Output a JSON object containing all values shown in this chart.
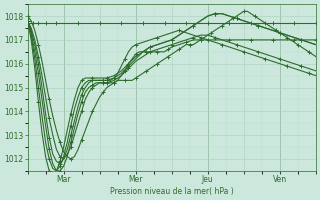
{
  "background_color": "#cce8dc",
  "grid_major_color": "#aacfbf",
  "grid_minor_color": "#bdddd0",
  "line_color": "#2d6b2d",
  "ylabel": "Pression niveau de la mer( hPa )",
  "ylim": [
    1011.5,
    1018.5
  ],
  "yticks": [
    1012,
    1013,
    1014,
    1015,
    1016,
    1017,
    1018
  ],
  "xtick_labels": [
    "",
    "Mar",
    "",
    "Mer",
    "",
    "Jeu",
    "",
    "Ven"
  ],
  "day_vlines": [
    1,
    3,
    5,
    7
  ],
  "xlim": [
    0,
    8
  ],
  "series": [
    {
      "x": [
        0,
        0.05,
        0.1,
        0.15,
        0.2,
        0.25,
        0.3,
        0.35,
        0.4,
        0.5,
        0.6,
        0.7,
        0.8,
        1.0,
        1.2,
        1.4,
        1.6,
        1.8,
        2.0,
        2.2,
        2.4,
        2.6,
        2.8,
        3.0,
        3.2,
        3.4,
        3.6,
        3.8,
        4.0,
        4.2,
        4.4,
        4.6,
        4.8,
        5.0,
        5.2,
        5.4,
        5.6,
        5.8,
        6.0,
        6.2,
        6.4,
        6.6,
        6.8,
        7.0,
        7.2,
        7.4,
        7.6,
        7.8,
        8.0
      ],
      "y": [
        1017.7,
        1017.7,
        1017.7,
        1017.7,
        1017.7,
        1017.7,
        1017.7,
        1017.7,
        1017.7,
        1017.7,
        1017.7,
        1017.7,
        1017.7,
        1017.7,
        1017.7,
        1017.7,
        1017.7,
        1017.7,
        1017.7,
        1017.7,
        1017.7,
        1017.7,
        1017.7,
        1017.7,
        1017.7,
        1017.7,
        1017.7,
        1017.7,
        1017.7,
        1017.7,
        1017.7,
        1017.7,
        1017.7,
        1017.7,
        1017.7,
        1017.7,
        1017.7,
        1017.7,
        1017.7,
        1017.7,
        1017.7,
        1017.7,
        1017.7,
        1017.7,
        1017.7,
        1017.7,
        1017.7,
        1017.7,
        1017.7
      ]
    },
    {
      "x": [
        0,
        0.1,
        0.2,
        0.3,
        0.4,
        0.5,
        0.6,
        0.7,
        0.8,
        0.9,
        1.0,
        1.1,
        1.2,
        1.3,
        1.4,
        1.5,
        1.6,
        1.7,
        1.8,
        1.9,
        2.0,
        2.1,
        2.2,
        2.3,
        2.4,
        2.5,
        2.6,
        2.7,
        2.8,
        2.9,
        3.0,
        3.1,
        3.2,
        3.3,
        3.4,
        3.5,
        3.6,
        3.7,
        3.8,
        3.9,
        4.0,
        4.2,
        4.4,
        4.6,
        4.8,
        5.0,
        5.2,
        5.4,
        5.6,
        5.8,
        6.0,
        6.2,
        6.4,
        6.6,
        6.8,
        7.0,
        7.2,
        7.4,
        7.6,
        7.8,
        8.0
      ],
      "y": [
        1017.8,
        1017.5,
        1017.0,
        1016.3,
        1015.5,
        1014.6,
        1013.7,
        1013.0,
        1012.4,
        1012.1,
        1012.0,
        1012.2,
        1012.5,
        1013.0,
        1013.5,
        1014.0,
        1014.5,
        1014.8,
        1015.0,
        1015.1,
        1015.2,
        1015.2,
        1015.2,
        1015.2,
        1015.2,
        1015.3,
        1015.5,
        1015.7,
        1016.0,
        1016.2,
        1016.4,
        1016.5,
        1016.5,
        1016.5,
        1016.5,
        1016.5,
        1016.5,
        1016.5,
        1016.5,
        1016.6,
        1016.7,
        1016.8,
        1016.9,
        1017.0,
        1017.0,
        1017.0,
        1017.0,
        1017.0,
        1017.0,
        1017.0,
        1017.0,
        1017.0,
        1017.0,
        1017.0,
        1017.0,
        1017.0,
        1017.0,
        1017.0,
        1017.0,
        1017.0,
        1017.0
      ]
    },
    {
      "x": [
        0,
        0.1,
        0.2,
        0.3,
        0.4,
        0.5,
        0.6,
        0.7,
        0.8,
        0.9,
        1.0,
        1.1,
        1.2,
        1.3,
        1.4,
        1.5,
        1.6,
        1.7,
        1.8,
        1.9,
        2.0,
        2.1,
        2.2,
        2.3,
        2.4,
        2.5,
        2.6,
        2.7,
        2.8,
        2.9,
        3.0,
        3.2,
        3.4,
        3.6,
        3.8,
        4.0,
        4.2,
        4.4,
        4.6,
        4.8,
        5.0,
        5.2,
        5.4,
        5.6,
        5.8,
        6.0,
        6.2,
        6.4,
        6.6,
        6.8,
        7.0,
        7.2,
        7.4,
        7.6,
        7.8,
        8.0
      ],
      "y": [
        1017.8,
        1017.4,
        1016.8,
        1016.0,
        1015.0,
        1013.9,
        1012.9,
        1012.2,
        1011.9,
        1011.8,
        1012.0,
        1012.4,
        1013.0,
        1013.6,
        1014.2,
        1014.7,
        1015.0,
        1015.2,
        1015.3,
        1015.3,
        1015.3,
        1015.3,
        1015.3,
        1015.3,
        1015.4,
        1015.6,
        1015.9,
        1016.2,
        1016.5,
        1016.7,
        1016.8,
        1016.9,
        1017.0,
        1017.1,
        1017.2,
        1017.3,
        1017.4,
        1017.3,
        1017.2,
        1017.1,
        1017.0,
        1016.9,
        1016.8,
        1016.7,
        1016.6,
        1016.5,
        1016.4,
        1016.3,
        1016.2,
        1016.1,
        1016.0,
        1015.9,
        1015.8,
        1015.7,
        1015.6,
        1015.5
      ]
    },
    {
      "x": [
        0,
        0.1,
        0.2,
        0.3,
        0.4,
        0.5,
        0.6,
        0.7,
        0.8,
        0.9,
        1.0,
        1.1,
        1.2,
        1.3,
        1.4,
        1.5,
        1.6,
        1.7,
        1.8,
        1.9,
        2.0,
        2.2,
        2.4,
        2.6,
        2.8,
        3.0,
        3.2,
        3.4,
        3.6,
        3.8,
        4.0,
        4.2,
        4.4,
        4.6,
        4.8,
        5.0,
        5.2,
        5.4,
        5.6,
        5.8,
        6.0,
        6.2,
        6.4,
        6.6,
        6.8,
        7.0,
        7.2,
        7.4,
        7.6,
        7.8,
        8.0
      ],
      "y": [
        1017.8,
        1017.3,
        1016.5,
        1015.6,
        1014.5,
        1013.4,
        1012.4,
        1011.8,
        1011.5,
        1011.5,
        1011.7,
        1012.1,
        1012.7,
        1013.3,
        1013.9,
        1014.4,
        1014.8,
        1015.0,
        1015.1,
        1015.2,
        1015.2,
        1015.2,
        1015.3,
        1015.5,
        1015.8,
        1016.1,
        1016.3,
        1016.5,
        1016.6,
        1016.7,
        1016.8,
        1016.9,
        1017.0,
        1017.1,
        1017.2,
        1017.2,
        1017.1,
        1017.0,
        1016.9,
        1016.8,
        1016.7,
        1016.6,
        1016.5,
        1016.4,
        1016.3,
        1016.2,
        1016.1,
        1016.0,
        1015.9,
        1015.8,
        1015.7
      ]
    },
    {
      "x": [
        0,
        0.1,
        0.2,
        0.3,
        0.4,
        0.5,
        0.6,
        0.7,
        0.8,
        0.9,
        1.0,
        1.1,
        1.2,
        1.3,
        1.4,
        1.5,
        1.6,
        1.7,
        1.8,
        1.9,
        2.0,
        2.2,
        2.4,
        2.6,
        2.8,
        3.0,
        3.2,
        3.4,
        3.6,
        3.8,
        4.0,
        4.2,
        4.4,
        4.6,
        4.8,
        5.0,
        5.2,
        5.4,
        5.6,
        5.8,
        6.0,
        6.2,
        6.4,
        6.6,
        6.8,
        7.0,
        7.2,
        7.4,
        7.6,
        7.8,
        8.0
      ],
      "y": [
        1017.8,
        1017.2,
        1016.2,
        1015.0,
        1013.8,
        1012.7,
        1012.0,
        1011.6,
        1011.5,
        1011.7,
        1012.1,
        1012.7,
        1013.4,
        1014.1,
        1014.6,
        1015.0,
        1015.2,
        1015.3,
        1015.3,
        1015.3,
        1015.3,
        1015.3,
        1015.4,
        1015.6,
        1015.9,
        1016.2,
        1016.5,
        1016.7,
        1016.8,
        1016.9,
        1017.0,
        1017.2,
        1017.4,
        1017.6,
        1017.8,
        1018.0,
        1018.1,
        1018.1,
        1018.0,
        1017.9,
        1017.8,
        1017.7,
        1017.6,
        1017.5,
        1017.4,
        1017.3,
        1017.2,
        1017.1,
        1017.0,
        1016.9,
        1016.8
      ]
    },
    {
      "x": [
        0,
        0.1,
        0.2,
        0.3,
        0.4,
        0.5,
        0.6,
        0.7,
        0.8,
        0.9,
        1.0,
        1.1,
        1.2,
        1.3,
        1.4,
        1.5,
        1.6,
        1.7,
        1.8,
        1.9,
        2.0,
        2.2,
        2.4,
        2.6,
        2.8,
        3.0,
        3.2,
        3.4,
        3.6,
        3.8,
        4.0,
        4.2,
        4.4,
        4.6,
        4.8,
        5.0,
        5.2,
        5.4,
        5.6,
        5.8,
        6.0,
        6.2,
        6.4,
        6.6,
        6.8,
        7.0,
        7.2,
        7.4,
        7.6,
        7.8,
        8.0
      ],
      "y": [
        1017.8,
        1017.0,
        1015.8,
        1014.4,
        1013.1,
        1012.1,
        1011.5,
        1011.3,
        1011.5,
        1011.9,
        1012.5,
        1013.2,
        1013.9,
        1014.5,
        1015.0,
        1015.3,
        1015.4,
        1015.4,
        1015.4,
        1015.4,
        1015.4,
        1015.4,
        1015.5,
        1015.7,
        1016.0,
        1016.3,
        1016.5,
        1016.7,
        1016.8,
        1016.9,
        1017.0,
        1017.2,
        1017.4,
        1017.6,
        1017.8,
        1018.0,
        1018.1,
        1018.1,
        1018.0,
        1017.9,
        1017.8,
        1017.7,
        1017.6,
        1017.5,
        1017.4,
        1017.3,
        1017.2,
        1017.1,
        1017.0,
        1016.9,
        1016.8
      ]
    },
    {
      "x": [
        0,
        0.1,
        0.2,
        0.3,
        0.4,
        0.5,
        0.6,
        0.7,
        0.8,
        0.9,
        1.0,
        1.1,
        1.2,
        1.3,
        1.4,
        1.5,
        1.6,
        1.7,
        1.8,
        1.9,
        2.0,
        2.1,
        2.2,
        2.3,
        2.4,
        2.5,
        2.6,
        2.7,
        2.8,
        2.9,
        3.0,
        3.1,
        3.2,
        3.3,
        3.4,
        3.5,
        3.6,
        3.7,
        3.8,
        3.9,
        4.0,
        4.1,
        4.2,
        4.3,
        4.4,
        4.5,
        4.6,
        4.7,
        4.8,
        4.9,
        5.0,
        5.1,
        5.2,
        5.3,
        5.4,
        5.5,
        5.6,
        5.7,
        5.8,
        5.9,
        6.0,
        6.1,
        6.2,
        6.3,
        6.4,
        6.5,
        6.6,
        6.7,
        6.8,
        6.9,
        7.0,
        7.1,
        7.2,
        7.3,
        7.4,
        7.5,
        7.6,
        7.7,
        7.8,
        7.9,
        8.0
      ],
      "y": [
        1018.0,
        1017.8,
        1017.4,
        1016.8,
        1016.1,
        1015.3,
        1014.5,
        1013.8,
        1013.2,
        1012.7,
        1012.3,
        1012.1,
        1012.0,
        1012.1,
        1012.4,
        1012.8,
        1013.2,
        1013.6,
        1014.0,
        1014.3,
        1014.6,
        1014.8,
        1015.0,
        1015.1,
        1015.2,
        1015.3,
        1015.3,
        1015.3,
        1015.3,
        1015.3,
        1015.4,
        1015.5,
        1015.6,
        1015.7,
        1015.8,
        1015.9,
        1016.0,
        1016.1,
        1016.2,
        1016.3,
        1016.4,
        1016.5,
        1016.6,
        1016.7,
        1016.8,
        1016.8,
        1016.8,
        1016.9,
        1017.0,
        1017.1,
        1017.2,
        1017.3,
        1017.4,
        1017.5,
        1017.6,
        1017.7,
        1017.8,
        1017.9,
        1018.0,
        1018.1,
        1018.2,
        1018.2,
        1018.1,
        1018.0,
        1017.9,
        1017.8,
        1017.7,
        1017.6,
        1017.5,
        1017.4,
        1017.3,
        1017.2,
        1017.1,
        1017.0,
        1016.9,
        1016.8,
        1016.7,
        1016.6,
        1016.5,
        1016.4,
        1016.3
      ]
    }
  ]
}
